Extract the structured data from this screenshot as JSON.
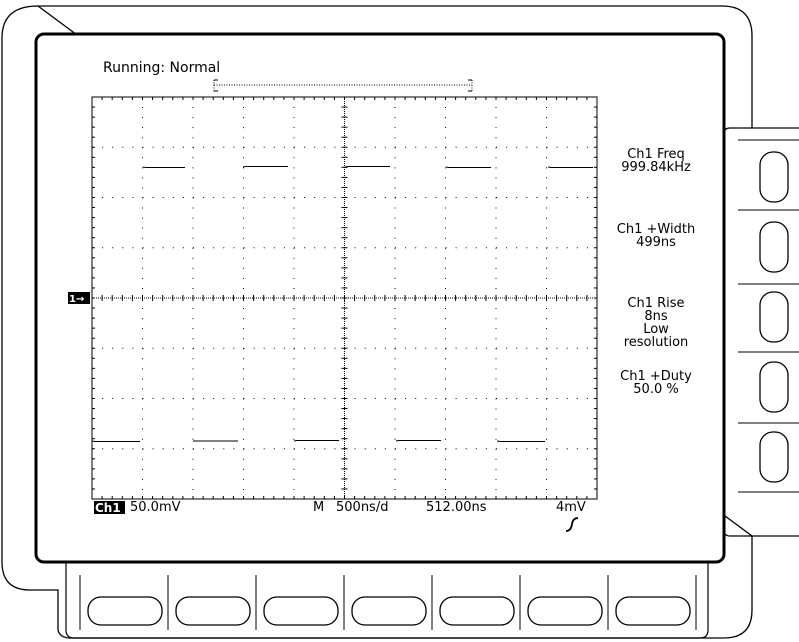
{
  "status": {
    "acquisition": "Running: Normal"
  },
  "side_menu": [
    {
      "title": "Ch1 Freq",
      "value": "999.84kHz"
    },
    {
      "title": "Ch1 +Width",
      "value": "499ns"
    },
    {
      "title": "Ch1 Rise",
      "value": "8ns",
      "note1": "Low",
      "note2": "resolution"
    },
    {
      "title": "Ch1 +Duty",
      "value": "50.0 %"
    }
  ],
  "channel_marker": {
    "label": "1→"
  },
  "readout": {
    "channel": "Ch1",
    "volts_div": "50.0mV",
    "timebase_prefix": "M",
    "time_div": "500ns/d",
    "delay": "512.00ns",
    "trigger_level": "4mV",
    "trigger_slope_icon": "rising-edge-icon"
  },
  "buttons": {
    "side_count": 5,
    "bottom_count": 7
  }
}
